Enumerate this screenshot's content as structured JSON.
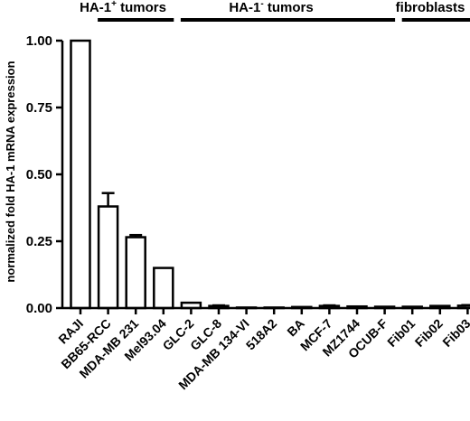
{
  "chart_data": {
    "type": "bar",
    "ylabel": "normalized fold HA-1 mRNA expression",
    "ylim": [
      0,
      1.0
    ],
    "yticks": [
      "0.00",
      "0.25",
      "0.50",
      "0.75",
      "1.00"
    ],
    "categories": [
      "RAJI",
      "BB65-RCC",
      "MDA-MB 231",
      "Mel93.04",
      "GLC-2",
      "GLC-8",
      "MDA-MB 134-VI",
      "518A2",
      "BA",
      "MCF-7",
      "MZ1744",
      "OCUB-F",
      "Fib01",
      "Fib02",
      "Fib03"
    ],
    "values": [
      1.0,
      0.38,
      0.265,
      0.15,
      0.02,
      0.008,
      0.002,
      0.002,
      0.004,
      0.008,
      0.006,
      0.005,
      0.005,
      0.008,
      0.009
    ],
    "errors": [
      0.0,
      0.05,
      0.008,
      0.0,
      0.0,
      0.002,
      0.0,
      0.0,
      0.0,
      0.002,
      0.0,
      0.0,
      0.0,
      0.0,
      0.002
    ],
    "bar_color": "#ffffff",
    "stroke_color": "#000000",
    "groups": [
      {
        "label_main": "HA-1",
        "label_sup": "+",
        "label_rest": " tumors",
        "from": 1,
        "to": 3
      },
      {
        "label_main": "HA-1",
        "label_sup": "-",
        "label_rest": " tumors",
        "from": 4,
        "to": 11
      },
      {
        "label_main": "fibroblasts",
        "label_sup": "",
        "label_rest": "",
        "from": 12,
        "to": 14
      }
    ]
  }
}
